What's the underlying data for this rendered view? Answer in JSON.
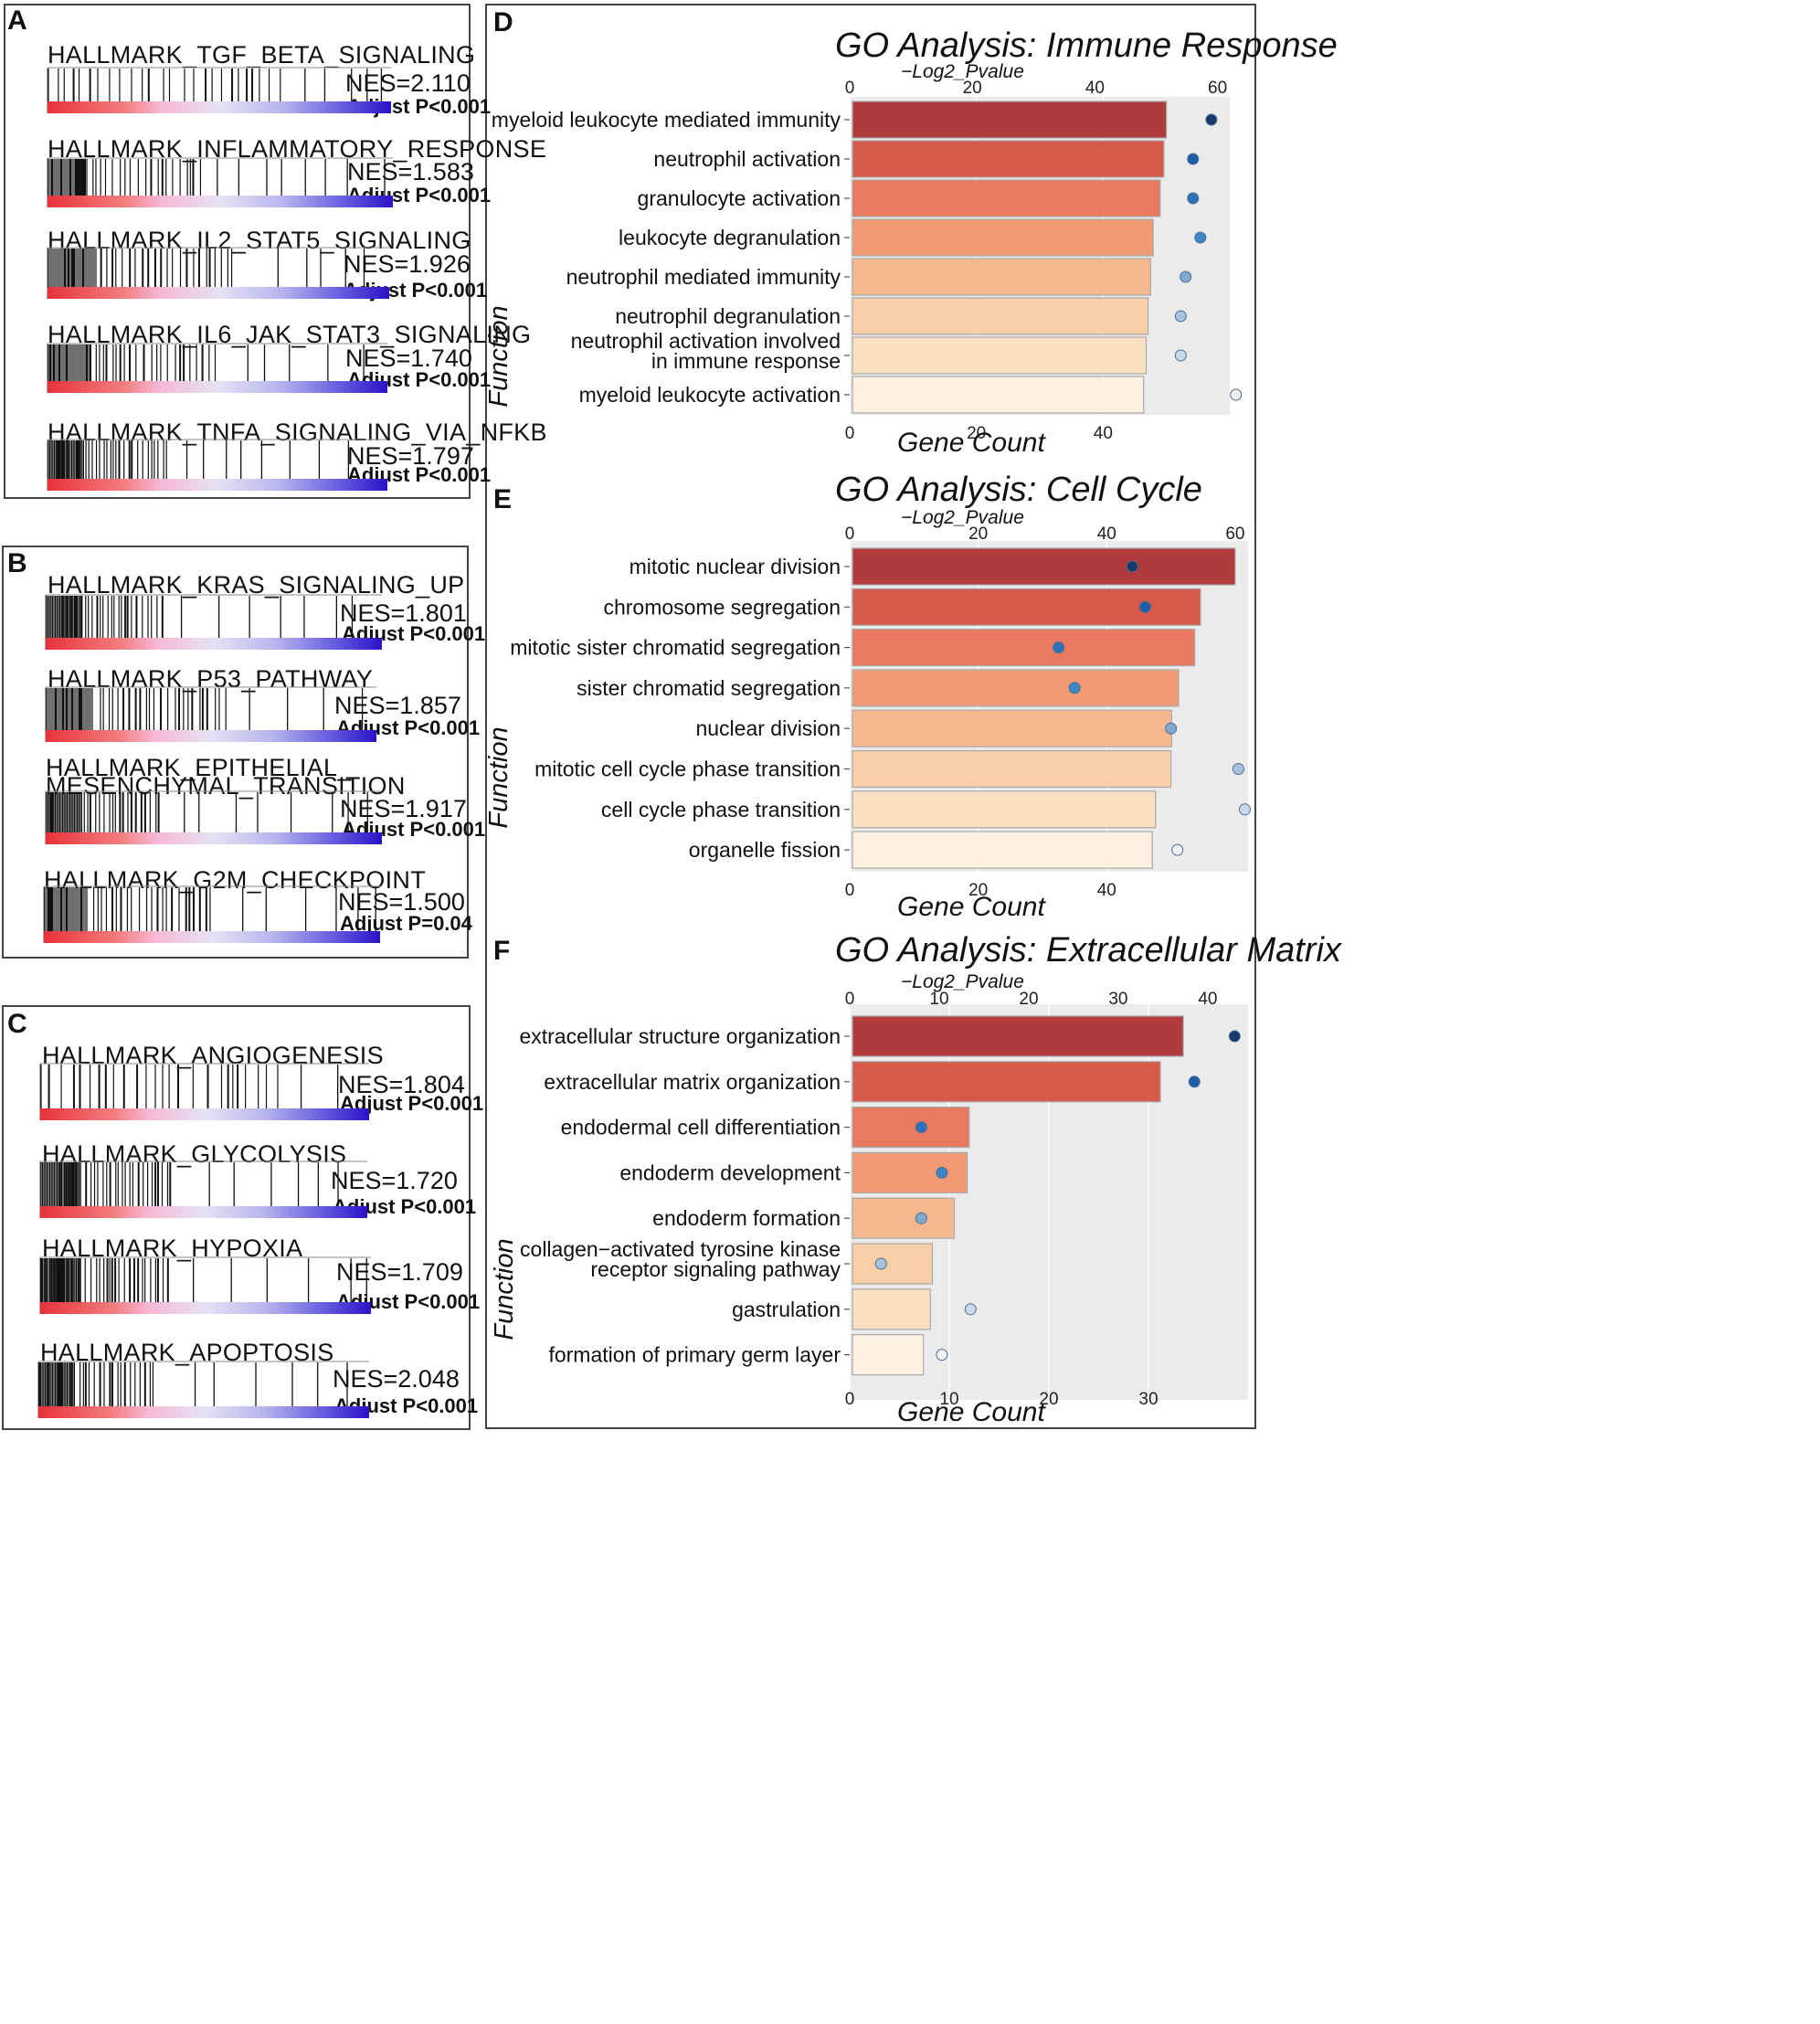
{
  "gsea_panels": [
    {
      "letter": "A",
      "sets": [
        {
          "name": "HALLMARK_TGF_BETA_SIGNALING",
          "nes": "NES=2.110",
          "p": "Adjust P<0.001"
        },
        {
          "name": "HALLMARK_INFLAMMATORY_RESPONSE",
          "nes": "NES=1.583",
          "p": "Adjust P<0.001"
        },
        {
          "name": "HALLMARK_IL2_STAT5_SIGNALING",
          "nes": "NES=1.926",
          "p": "Adjust P<0.001"
        },
        {
          "name": "HALLMARK_IL6_JAK_STAT3_SIGNALING",
          "nes": "NES=1.740",
          "p": "Adjust P<0.001"
        },
        {
          "name": "HALLMARK_TNFA_SIGNALING_VIA_NFKB",
          "nes": "NES=1.797",
          "p": "Adjust P<0.001"
        }
      ]
    },
    {
      "letter": "B",
      "sets": [
        {
          "name": "HALLMARK_KRAS_SIGNALING_UP",
          "nes": "NES=1.801",
          "p": "Adjust P<0.001"
        },
        {
          "name": "HALLMARK_P53_PATHWAY",
          "nes": "NES=1.857",
          "p": "Adjust P<0.001"
        },
        {
          "name": "HALLMARK_EPITHELIAL_ MESENCHYMAL_TRANSITION",
          "nes": "NES=1.917",
          "p": "Adjust P<0.001"
        },
        {
          "name": "HALLMARK_G2M_CHECKPOINT",
          "nes": "NES=1.500",
          "p": "Adjust P=0.04"
        }
      ]
    },
    {
      "letter": "C",
      "sets": [
        {
          "name": "HALLMARK_ANGIOGENESIS",
          "nes": "NES=1.804",
          "p": "Adjust P<0.001"
        },
        {
          "name": "HALLMARK_GLYCOLYSIS",
          "nes": "NES=1.720",
          "p": "Adjust P<0.001"
        },
        {
          "name": "HALLMARK_HYPOXIA",
          "nes": "NES=1.709",
          "p": "Adjust P<0.001"
        },
        {
          "name": "HALLMARK_APOPTOSIS",
          "nes": "NES=2.048",
          "p": "Adjust P<0.001"
        }
      ]
    }
  ],
  "chart_data": [
    {
      "letter": "D",
      "type": "bar",
      "title": "GO Analysis: Immune Response",
      "xlabel": "Gene Count",
      "top_label": "−Log2_Pvalue",
      "ylabel": "Function",
      "count_ticks": [
        "0",
        "20",
        "40"
      ],
      "count_range": [
        0,
        60
      ],
      "p_ticks": [
        "0",
        "20",
        "40",
        "60"
      ],
      "p_range": [
        0,
        62
      ],
      "categories": [
        [
          "myeloid leukocyte mediated immunity"
        ],
        [
          "neutrophil activation"
        ],
        [
          "granulocyte activation"
        ],
        [
          "leukocyte degranulation"
        ],
        [
          "neutrophil mediated immunity"
        ],
        [
          "neutrophil degranulation"
        ],
        [
          "neutrophil activation involved",
          "in immune response"
        ],
        [
          "myeloid leukocyte activation"
        ]
      ],
      "counts": [
        50,
        49.6,
        49,
        47.9,
        47.5,
        47.1,
        46.8,
        46.4
      ],
      "log2p": [
        59,
        56,
        56,
        57.2,
        54.8,
        54,
        54,
        63
      ]
    },
    {
      "letter": "E",
      "type": "bar",
      "title": "GO Analysis: Cell Cycle",
      "xlabel": "Gene Count",
      "top_label": "−Log2_Pvalue",
      "ylabel": "Function",
      "count_ticks": [
        "0",
        "20",
        "40"
      ],
      "count_range": [
        0,
        62
      ],
      "p_ticks": [
        "0",
        "20",
        "40",
        "60"
      ],
      "p_range": [
        0,
        62
      ],
      "categories": [
        [
          "mitotic nuclear division"
        ],
        [
          "chromosome segregation"
        ],
        [
          "mitotic sister chromatid segregation"
        ],
        [
          "sister chromatid segregation"
        ],
        [
          "nuclear division"
        ],
        [
          "mitotic cell cycle phase transition"
        ],
        [
          "cell cycle phase transition"
        ],
        [
          "organelle fission"
        ]
      ],
      "counts": [
        60,
        54.6,
        53.7,
        51.2,
        50.1,
        50,
        47.6,
        47.1
      ],
      "log2p": [
        44,
        46,
        32.5,
        35,
        50,
        60.5,
        61.5,
        51
      ]
    },
    {
      "letter": "F",
      "type": "bar",
      "title": "GO Analysis: Extracellular Matrix",
      "xlabel": "Gene Count",
      "top_label": "−Log2_Pvalue",
      "ylabel": "Function",
      "count_ticks": [
        "0",
        "10",
        "20",
        "30"
      ],
      "count_range": [
        0,
        40
      ],
      "p_ticks": [
        "0",
        "10",
        "20",
        "30",
        "40"
      ],
      "p_range": [
        0,
        44.5
      ],
      "categories": [
        [
          "extracellular structure organization"
        ],
        [
          "extracellular matrix organization"
        ],
        [
          "endodermal cell differentiation"
        ],
        [
          "endoderm development"
        ],
        [
          "endoderm formation"
        ],
        [
          "collagen−activated tyrosine kinase",
          "receptor signaling pathway"
        ],
        [
          "gastrulation"
        ],
        [
          "formation of primary germ layer"
        ]
      ],
      "counts": [
        33.5,
        31.2,
        12,
        11.8,
        10.5,
        8.3,
        8.1,
        7.4
      ],
      "log2p": [
        43,
        38.5,
        8,
        10.3,
        8,
        3.5,
        13.5,
        10.3
      ]
    }
  ],
  "colors": {
    "bars": [
      "#b03a3c",
      "#d65a4a",
      "#e97a60",
      "#f09a76",
      "#f5b88e",
      "#f8cfa6",
      "#fae0c0",
      "#fcf0e0"
    ],
    "points": [
      "#163a6b",
      "#1d5ea6",
      "#2b72b8",
      "#3d86c4",
      "#7fa9cf",
      "#a9c3dd",
      "#c9d9e9",
      "#f2f2f2"
    ],
    "panel_bg": "#ebebeb"
  }
}
